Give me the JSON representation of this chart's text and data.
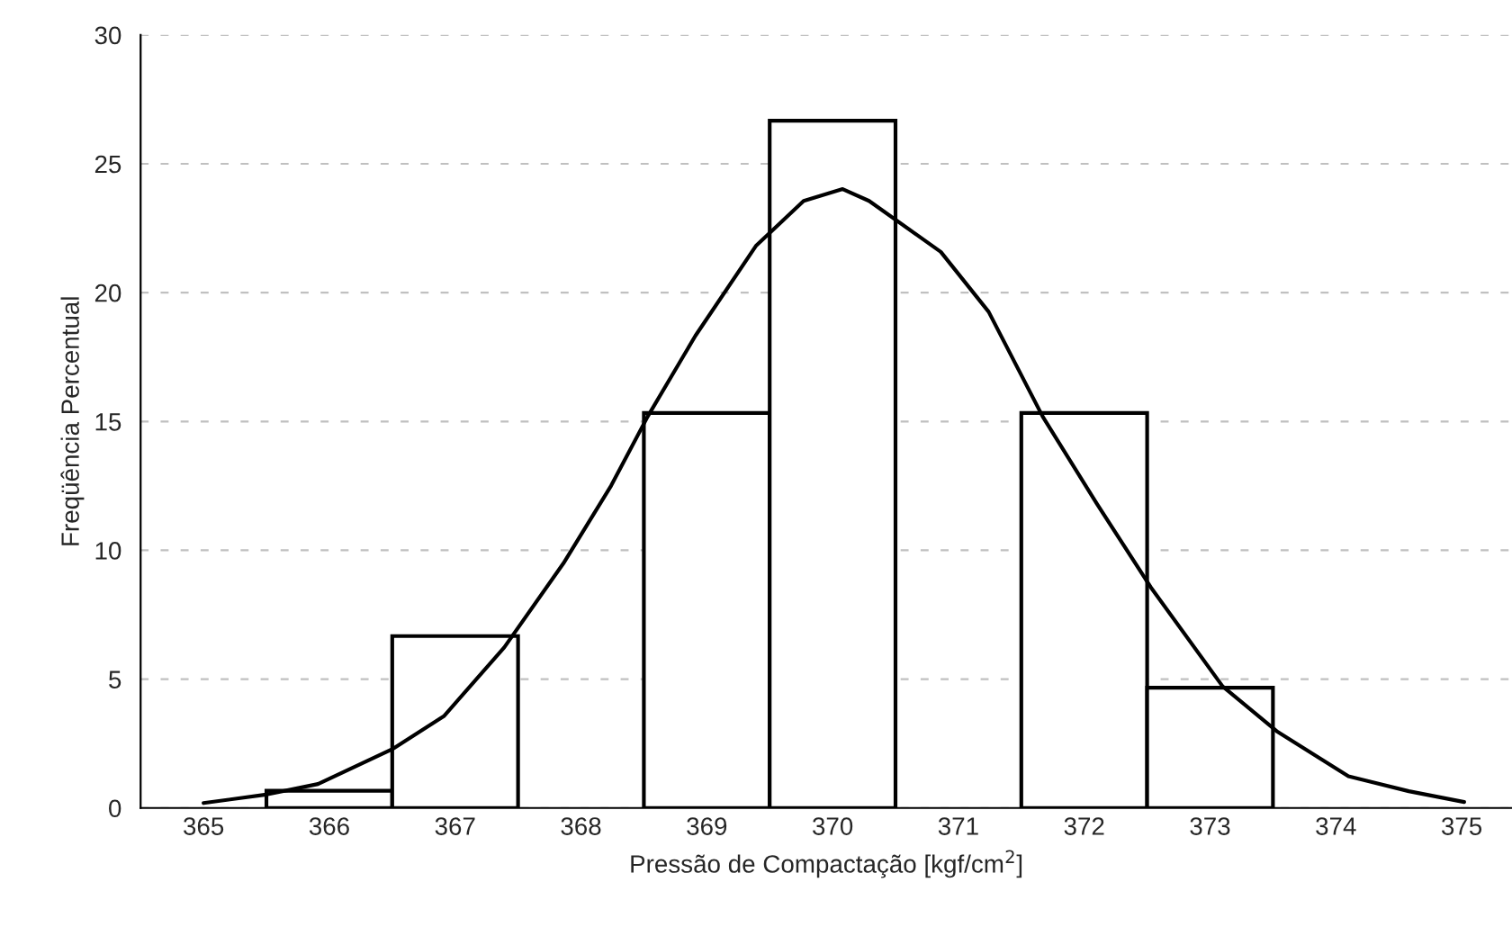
{
  "chart_data": {
    "type": "histogram",
    "xlabel": "Pressão de Compactação [kgf/cm$^{2}$]",
    "ylabel": "Freqüência Percentual",
    "bins": [
      365.5,
      366.5,
      367.5,
      368.5,
      369.5,
      370.5,
      371.5,
      372.5,
      373.5
    ],
    "values": [
      0.67,
      6.67,
      0,
      15.33,
      26.67,
      0,
      15.33,
      4.67
    ],
    "color": "#ffffff",
    "series": [
      {
        "type": "line",
        "color": "#000000",
        "line_style": "solid",
        "marker": "none",
        "x": [
          365.0,
          365.51,
          365.91,
          366.5,
          366.91,
          367.39,
          367.86,
          368.24,
          368.53,
          368.91,
          369.39,
          369.77,
          370.08,
          370.29,
          370.86,
          371.24,
          371.67,
          372.1,
          372.53,
          373.1,
          373.53,
          374.1,
          374.58,
          375.02
        ],
        "values": [
          0.19,
          0.53,
          0.93,
          2.28,
          3.56,
          6.23,
          9.49,
          12.51,
          15.19,
          18.33,
          21.81,
          23.56,
          24.02,
          23.56,
          21.58,
          19.26,
          15.19,
          11.81,
          8.56,
          4.72,
          2.98,
          1.23,
          0.65,
          0.23
        ]
      }
    ],
    "xlim": [
      364.5,
      375.4
    ],
    "xticks": [
      365,
      366,
      367,
      368,
      369,
      370,
      371,
      372,
      373,
      374,
      375
    ],
    "ylim": [
      0,
      30
    ],
    "yticks": [
      0,
      5,
      10,
      15,
      20,
      25,
      30
    ],
    "grid": "y",
    "legend": false
  }
}
